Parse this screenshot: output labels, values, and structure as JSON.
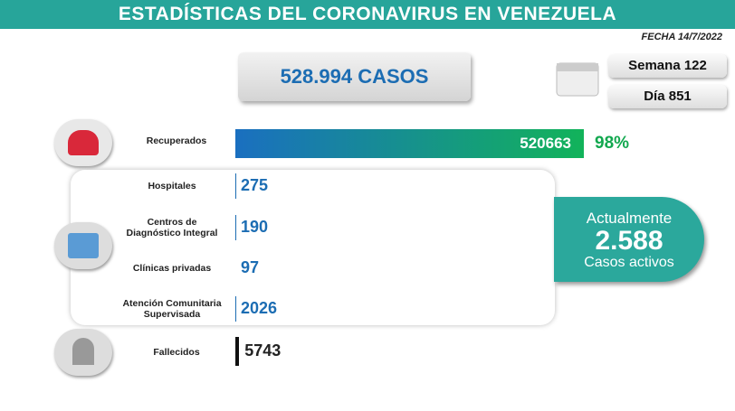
{
  "header": {
    "title": "ESTADÍSTICAS DEL CORONAVIRUS EN VENEZUELA",
    "date": "FECHA 14/7/2022"
  },
  "summary": {
    "total": "528.994 CASOS",
    "week": "Semana 122",
    "day": "Día 851"
  },
  "recovered": {
    "label": "Recuperados",
    "value": 520663,
    "share": "98%"
  },
  "facilities": [
    {
      "label": "Hospitales",
      "value": 275
    },
    {
      "label": "Centros de Diagnóstico Integral",
      "value": 190
    },
    {
      "label": "Clínicas privadas",
      "value": 97
    },
    {
      "label": "Atención Comunitaria Supervisada",
      "value": 2026
    }
  ],
  "deaths": {
    "label": "Fallecidos",
    "value": 5743
  },
  "active": {
    "intro": "Actualmente",
    "value": "2.588",
    "caption": "Casos activos"
  }
}
